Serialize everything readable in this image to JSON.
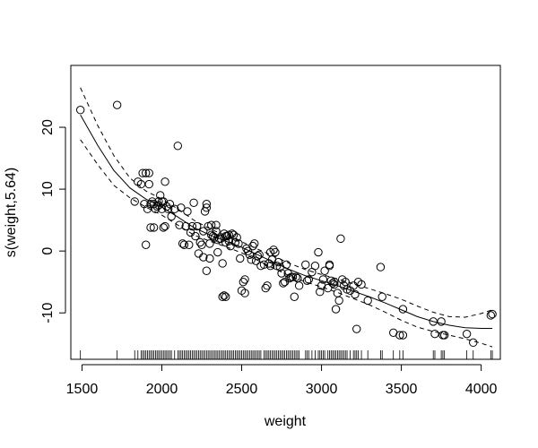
{
  "chart_data": {
    "type": "scatter",
    "title": "",
    "xlabel": "weight",
    "ylabel": "s(weight,5.64)",
    "xlim": [
      1430,
      4120
    ],
    "ylim": [
      -17.5,
      30
    ],
    "x_ticks": [
      1500,
      2000,
      2500,
      3000,
      3500,
      4000
    ],
    "y_ticks": [
      -10,
      0,
      10,
      20
    ],
    "grid": false,
    "legend": "none",
    "series": [
      {
        "role": "smooth-fit",
        "style": "solid",
        "x": [
          1490,
          1600,
          1700,
          1800,
          1900,
          2000,
          2100,
          2200,
          2300,
          2400,
          2500,
          2600,
          2700,
          2800,
          2900,
          3000,
          3100,
          3200,
          3300,
          3400,
          3500,
          3600,
          3700,
          3800,
          3900,
          4000,
          4070
        ],
        "y": [
          22,
          17,
          13,
          10.2,
          8.4,
          7.1,
          5.5,
          3.8,
          2.6,
          1.6,
          0.6,
          -0.6,
          -1.8,
          -3.0,
          -4.0,
          -4.8,
          -5.6,
          -6.5,
          -7.4,
          -8.4,
          -9.5,
          -10.6,
          -11.4,
          -12.0,
          -12.4,
          -12.5,
          -12.5
        ]
      },
      {
        "role": "upper-confidence-band",
        "style": "dashed",
        "x": [
          1490,
          1600,
          1700,
          1800,
          1900,
          2000,
          2100,
          2200,
          2300,
          2400,
          2500,
          2600,
          2700,
          2800,
          2900,
          3000,
          3100,
          3200,
          3300,
          3400,
          3500,
          3600,
          3700,
          3800,
          3900,
          4000,
          4070
        ],
        "y": [
          26.4,
          20.2,
          15.4,
          11.8,
          9.7,
          8.4,
          6.8,
          5.0,
          3.6,
          2.5,
          1.5,
          0.3,
          -0.8,
          -2.0,
          -3.0,
          -3.8,
          -4.5,
          -5.3,
          -6.1,
          -6.9,
          -7.8,
          -8.9,
          -9.9,
          -10.6,
          -10.7,
          -10.1,
          -9.5
        ]
      },
      {
        "role": "lower-confidence-band",
        "style": "dashed",
        "x": [
          1490,
          1600,
          1700,
          1800,
          1900,
          2000,
          2100,
          2200,
          2300,
          2400,
          2500,
          2600,
          2700,
          2800,
          2900,
          3000,
          3100,
          3200,
          3300,
          3400,
          3500,
          3600,
          3700,
          3800,
          3900,
          4000,
          4070
        ],
        "y": [
          18.0,
          13.9,
          10.6,
          8.6,
          7.1,
          5.8,
          4.2,
          2.6,
          1.6,
          0.7,
          -0.3,
          -1.5,
          -2.8,
          -4.0,
          -5.0,
          -5.8,
          -6.7,
          -7.7,
          -8.7,
          -9.9,
          -11.2,
          -12.3,
          -13.0,
          -13.6,
          -14.2,
          -14.9,
          -15.5
        ]
      }
    ],
    "points": [
      [
        1490,
        22.8
      ],
      [
        1720,
        23.6
      ],
      [
        1830,
        8.0
      ],
      [
        1850,
        11.2
      ],
      [
        1870,
        10.8
      ],
      [
        1880,
        12.6
      ],
      [
        1890,
        7.6
      ],
      [
        1900,
        12.6
      ],
      [
        1900,
        1.0
      ],
      [
        1910,
        6.8
      ],
      [
        1920,
        12.6
      ],
      [
        1920,
        10.8
      ],
      [
        1930,
        7.6
      ],
      [
        1930,
        3.8
      ],
      [
        1940,
        8.0
      ],
      [
        1950,
        3.8
      ],
      [
        1950,
        7.6
      ],
      [
        1960,
        6.8
      ],
      [
        1970,
        7.2
      ],
      [
        1980,
        8.0
      ],
      [
        1980,
        7.4
      ],
      [
        1990,
        9.0
      ],
      [
        2000,
        6.8
      ],
      [
        2000,
        8.0
      ],
      [
        2010,
        8.0
      ],
      [
        2010,
        3.8
      ],
      [
        2020,
        11.2
      ],
      [
        2020,
        4.0
      ],
      [
        2030,
        7.2
      ],
      [
        2040,
        6.8
      ],
      [
        2050,
        7.6
      ],
      [
        2060,
        5.6
      ],
      [
        2080,
        6.8
      ],
      [
        2100,
        17.0
      ],
      [
        2110,
        4.2
      ],
      [
        2120,
        7.0
      ],
      [
        2130,
        1.2
      ],
      [
        2140,
        1.0
      ],
      [
        2150,
        4.0
      ],
      [
        2160,
        6.4
      ],
      [
        2170,
        1.0
      ],
      [
        2180,
        3.0
      ],
      [
        2190,
        4.0
      ],
      [
        2200,
        7.8
      ],
      [
        2210,
        2.4
      ],
      [
        2220,
        4.0
      ],
      [
        2230,
        -0.4
      ],
      [
        2240,
        1.4
      ],
      [
        2250,
        1.0
      ],
      [
        2260,
        3.2
      ],
      [
        2260,
        -1.0
      ],
      [
        2270,
        6.4
      ],
      [
        2280,
        7.6
      ],
      [
        2280,
        7.0
      ],
      [
        2280,
        -3.2
      ],
      [
        2290,
        4.0
      ],
      [
        2300,
        1.2
      ],
      [
        2300,
        -1.2
      ],
      [
        2310,
        4.2
      ],
      [
        2310,
        2.6
      ],
      [
        2320,
        2.4
      ],
      [
        2330,
        2.2
      ],
      [
        2340,
        4.2
      ],
      [
        2340,
        3.2
      ],
      [
        2350,
        1.8
      ],
      [
        2350,
        -0.2
      ],
      [
        2360,
        2.0
      ],
      [
        2370,
        2.0
      ],
      [
        2380,
        -7.4
      ],
      [
        2380,
        -2.0
      ],
      [
        2390,
        -7.2
      ],
      [
        2390,
        2.8
      ],
      [
        2400,
        -7.4
      ],
      [
        2400,
        2.4
      ],
      [
        2400,
        1.4
      ],
      [
        2410,
        2.4
      ],
      [
        2420,
        2.6
      ],
      [
        2420,
        1.6
      ],
      [
        2430,
        0.8
      ],
      [
        2440,
        2.8
      ],
      [
        2450,
        2.6
      ],
      [
        2460,
        1.4
      ],
      [
        2470,
        2.2
      ],
      [
        2480,
        1.2
      ],
      [
        2490,
        -1.2
      ],
      [
        2500,
        -6.4
      ],
      [
        2510,
        -5.0
      ],
      [
        2520,
        -4.6
      ],
      [
        2520,
        -6.8
      ],
      [
        2530,
        0.4
      ],
      [
        2540,
        0.0
      ],
      [
        2550,
        -0.6
      ],
      [
        2560,
        -1.4
      ],
      [
        2570,
        0.8
      ],
      [
        2580,
        1.2
      ],
      [
        2590,
        -1.6
      ],
      [
        2600,
        -0.8
      ],
      [
        2610,
        -0.6
      ],
      [
        2620,
        -2.4
      ],
      [
        2640,
        -2.2
      ],
      [
        2650,
        -6.0
      ],
      [
        2660,
        -5.6
      ],
      [
        2670,
        -2.0
      ],
      [
        2680,
        -2.4
      ],
      [
        2680,
        -0.2
      ],
      [
        2690,
        -1.4
      ],
      [
        2700,
        0.2
      ],
      [
        2710,
        -0.2
      ],
      [
        2720,
        -2.4
      ],
      [
        2730,
        -1.8
      ],
      [
        2740,
        -2.6
      ],
      [
        2750,
        -3.6
      ],
      [
        2760,
        -5.2
      ],
      [
        2770,
        -5.0
      ],
      [
        2780,
        -2.2
      ],
      [
        2790,
        -3.6
      ],
      [
        2800,
        -4.4
      ],
      [
        2810,
        -4.2
      ],
      [
        2820,
        -4.2
      ],
      [
        2830,
        -7.4
      ],
      [
        2840,
        -4.2
      ],
      [
        2850,
        -4.4
      ],
      [
        2860,
        -5.6
      ],
      [
        2900,
        -2.2
      ],
      [
        2910,
        -4.8
      ],
      [
        2920,
        -4.6
      ],
      [
        2940,
        -3.4
      ],
      [
        2960,
        -2.4
      ],
      [
        2980,
        -0.2
      ],
      [
        2990,
        -6.6
      ],
      [
        3000,
        -5.6
      ],
      [
        3010,
        -4.6
      ],
      [
        3020,
        -3.2
      ],
      [
        3040,
        -6.0
      ],
      [
        3050,
        -2.2
      ],
      [
        3050,
        -2.4
      ],
      [
        3060,
        -4.8
      ],
      [
        3070,
        -5.2
      ],
      [
        3080,
        -5.4
      ],
      [
        3080,
        -5.0
      ],
      [
        3090,
        -9.4
      ],
      [
        3100,
        -6.8
      ],
      [
        3110,
        -8.0
      ],
      [
        3120,
        2.0
      ],
      [
        3130,
        -4.6
      ],
      [
        3140,
        -5.6
      ],
      [
        3150,
        -5.0
      ],
      [
        3160,
        -6.2
      ],
      [
        3180,
        -6.4
      ],
      [
        3200,
        -5.6
      ],
      [
        3210,
        -7.0
      ],
      [
        3220,
        -12.6
      ],
      [
        3230,
        -5.0
      ],
      [
        3250,
        -5.4
      ],
      [
        3290,
        -8.0
      ],
      [
        3370,
        -2.6
      ],
      [
        3380,
        -7.4
      ],
      [
        3450,
        -13.2
      ],
      [
        3490,
        -13.6
      ],
      [
        3510,
        -13.6
      ],
      [
        3510,
        -9.4
      ],
      [
        3700,
        -11.4
      ],
      [
        3710,
        -13.4
      ],
      [
        3750,
        -11.4
      ],
      [
        3760,
        -13.6
      ],
      [
        3770,
        -13.6
      ],
      [
        3910,
        -13.4
      ],
      [
        3950,
        -14.8
      ],
      [
        4060,
        -10.4
      ],
      [
        4070,
        -10.2
      ]
    ],
    "rug": [
      1490,
      1720,
      1830,
      1850,
      1870,
      1880,
      1890,
      1900,
      1910,
      1920,
      1930,
      1940,
      1950,
      1960,
      1970,
      1980,
      1990,
      2000,
      2010,
      2020,
      2030,
      2040,
      2050,
      2060,
      2080,
      2100,
      2110,
      2120,
      2130,
      2140,
      2150,
      2160,
      2170,
      2180,
      2190,
      2200,
      2210,
      2220,
      2230,
      2240,
      2250,
      2260,
      2270,
      2280,
      2290,
      2300,
      2310,
      2320,
      2330,
      2340,
      2350,
      2360,
      2370,
      2380,
      2390,
      2400,
      2410,
      2420,
      2430,
      2440,
      2450,
      2460,
      2470,
      2480,
      2490,
      2500,
      2510,
      2520,
      2530,
      2540,
      2550,
      2560,
      2570,
      2580,
      2590,
      2600,
      2610,
      2620,
      2640,
      2650,
      2660,
      2670,
      2680,
      2690,
      2700,
      2710,
      2720,
      2730,
      2740,
      2750,
      2760,
      2770,
      2780,
      2790,
      2800,
      2810,
      2820,
      2830,
      2840,
      2850,
      2860,
      2900,
      2910,
      2920,
      2940,
      2960,
      2980,
      2990,
      3000,
      3010,
      3020,
      3040,
      3050,
      3060,
      3070,
      3080,
      3090,
      3100,
      3110,
      3120,
      3130,
      3140,
      3150,
      3160,
      3180,
      3200,
      3210,
      3220,
      3230,
      3250,
      3290,
      3370,
      3380,
      3450,
      3490,
      3510,
      3700,
      3710,
      3750,
      3760,
      3770,
      3910,
      3950,
      4060,
      4070
    ]
  }
}
